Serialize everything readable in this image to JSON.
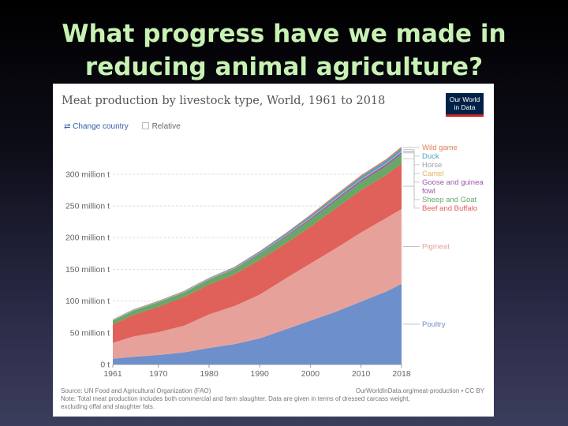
{
  "slide": {
    "title_line1": "What progress have we made in",
    "title_line2": "reducing animal agriculture?"
  },
  "header": {
    "logo_line1": "Our World",
    "logo_line2": "in Data",
    "change_country": "Change country",
    "relative": "Relative"
  },
  "footer": {
    "source": "Source: UN Food and Agricultural Organization (FAO)",
    "url": "OurWorldInData.org/meat-production • CC BY",
    "note_line1": "Note: Total meat production includes both commercial and farm slaughter. Data are given in terms of dressed carcass weight,",
    "note_line2": "excluding offal and slaughter fats."
  },
  "chart_data": {
    "type": "area",
    "stacked": true,
    "title": "Meat production by livestock type, World, 1961 to 2018",
    "unit": "million t",
    "x": [
      1961,
      1965,
      1970,
      1975,
      1980,
      1985,
      1990,
      1995,
      2000,
      2005,
      2010,
      2015,
      2018
    ],
    "x_ticks": [
      1961,
      1970,
      1980,
      1990,
      2000,
      2010,
      2018
    ],
    "y_ticks": [
      0,
      50,
      100,
      150,
      200,
      250,
      300
    ],
    "y_tick_labels": [
      "0 t",
      "50 million t",
      "100 million t",
      "150 million t",
      "200 million t",
      "250 million t",
      "300 million t"
    ],
    "ylim": [
      0,
      340
    ],
    "grid": true,
    "legend": "right, inline labels",
    "series": [
      {
        "name": "Poultry",
        "color": "#6d8fcb",
        "values": [
          9,
          12,
          15,
          19,
          26,
          32,
          41,
          55,
          69,
          83,
          99,
          115,
          127
        ]
      },
      {
        "name": "Pigmeat",
        "color": "#e6a29a",
        "values": [
          25,
          32,
          36,
          42,
          53,
          60,
          69,
          80,
          90,
          100,
          109,
          116,
          118
        ]
      },
      {
        "name": "Beef and Buffalo",
        "color": "#e0605a",
        "values": [
          29,
          34,
          40,
          45,
          47,
          50,
          55,
          55,
          58,
          63,
          67,
          68,
          72
        ]
      },
      {
        "name": "Sheep and Goat",
        "color": "#68a866",
        "values": [
          6,
          6.5,
          7,
          7,
          7.5,
          8,
          9,
          10,
          11,
          12,
          13,
          14,
          15
        ]
      },
      {
        "name": "Goose and guinea fowl",
        "color": "#9a58a8",
        "values": [
          0.2,
          0.3,
          0.4,
          0.5,
          0.7,
          1,
          1.3,
          1.8,
          2.3,
          2.6,
          2.8,
          3,
          3.1
        ]
      },
      {
        "name": "Camel",
        "color": "#e2b565",
        "values": [
          0.3,
          0.3,
          0.3,
          0.4,
          0.4,
          0.4,
          0.4,
          0.5,
          0.5,
          0.6,
          0.6,
          0.6,
          0.6
        ]
      },
      {
        "name": "Horse",
        "color": "#9aa3a9",
        "values": [
          0.6,
          0.6,
          0.6,
          0.6,
          0.6,
          0.6,
          0.6,
          0.7,
          0.7,
          0.8,
          0.8,
          0.9,
          0.9
        ]
      },
      {
        "name": "Duck",
        "color": "#4fa0c6",
        "values": [
          0.5,
          0.6,
          0.7,
          0.9,
          1,
          1.3,
          1.8,
          2.5,
          3,
          3.5,
          4,
          4.4,
          4.6
        ]
      },
      {
        "name": "Wild game",
        "color": "#e07d55",
        "values": [
          0.4,
          0.4,
          0.5,
          0.5,
          0.5,
          0.6,
          0.7,
          1,
          1.6,
          2,
          2.1,
          2.1,
          2.2
        ]
      }
    ]
  }
}
